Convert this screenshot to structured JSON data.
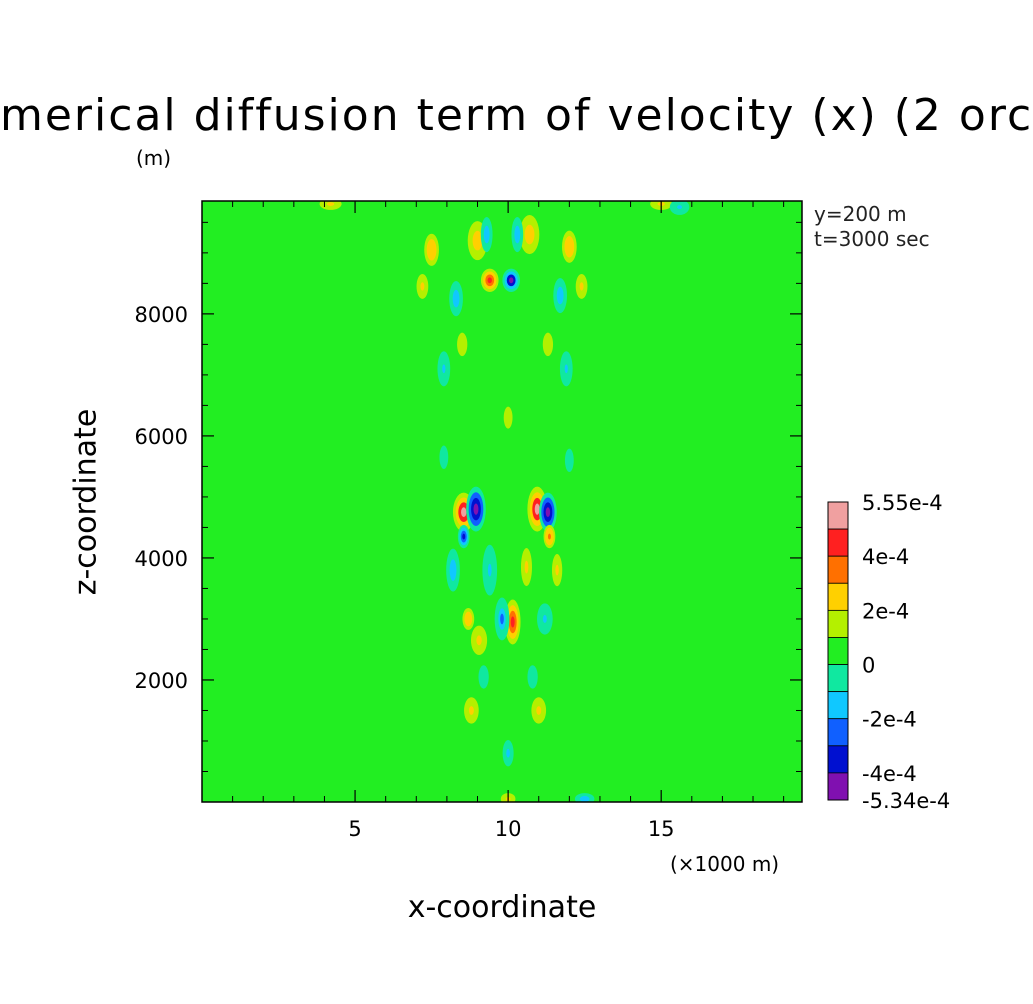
{
  "chart_data": {
    "type": "heatmap",
    "title": "merical diffusion term of velocity (x) (2 orc",
    "xlabel": "x-coordinate",
    "ylabel": "z-coordinate",
    "x_units": "(×1000 m)",
    "y_units": "(m)",
    "annotations": [
      "y=200 m",
      "t=3000 sec"
    ],
    "xlim": [
      0,
      19.6
    ],
    "ylim": [
      0,
      9850
    ],
    "xticks": [
      {
        "value": 5,
        "label": "5"
      },
      {
        "value": 10,
        "label": "10"
      },
      {
        "value": 15,
        "label": "15"
      }
    ],
    "yticks": [
      {
        "value": 2000,
        "label": "2000"
      },
      {
        "value": 4000,
        "label": "4000"
      },
      {
        "value": 6000,
        "label": "6000"
      },
      {
        "value": 8000,
        "label": "8000"
      }
    ],
    "background_color": "#22ee22",
    "features": [
      {
        "x": 9.4,
        "z": 8550,
        "value": 0.00042,
        "rx": 0.18,
        "rz": 120
      },
      {
        "x": 10.1,
        "z": 8550,
        "value": -0.00045,
        "rx": 0.18,
        "rz": 120
      },
      {
        "x": 8.55,
        "z": 4750,
        "value": 0.0005,
        "rx": 0.22,
        "rz": 200
      },
      {
        "x": 8.95,
        "z": 4800,
        "value": -0.0005,
        "rx": 0.2,
        "rz": 230
      },
      {
        "x": 10.95,
        "z": 4800,
        "value": 0.00048,
        "rx": 0.2,
        "rz": 230
      },
      {
        "x": 11.3,
        "z": 4750,
        "value": -0.0005,
        "rx": 0.18,
        "rz": 200
      },
      {
        "x": 8.55,
        "z": 4350,
        "value": -0.00035,
        "rx": 0.12,
        "rz": 120
      },
      {
        "x": 11.35,
        "z": 4350,
        "value": 0.00032,
        "rx": 0.12,
        "rz": 120
      },
      {
        "x": 10.15,
        "z": 2950,
        "value": 0.00036,
        "rx": 0.16,
        "rz": 230
      },
      {
        "x": 9.8,
        "z": 3000,
        "value": -0.00025,
        "rx": 0.15,
        "rz": 220
      },
      {
        "x": 9.05,
        "z": 2650,
        "value": 0.0002,
        "rx": 0.22,
        "rz": 200
      },
      {
        "x": 8.7,
        "z": 3000,
        "value": 0.00022,
        "rx": 0.16,
        "rz": 150
      },
      {
        "x": 11.2,
        "z": 3000,
        "value": -0.00018,
        "rx": 0.16,
        "rz": 160
      },
      {
        "x": 8.2,
        "z": 3800,
        "value": -0.0002,
        "rx": 0.14,
        "rz": 220
      },
      {
        "x": 11.6,
        "z": 3800,
        "value": 0.00018,
        "rx": 0.14,
        "rz": 220
      },
      {
        "x": 9.4,
        "z": 3800,
        "value": -0.00017,
        "rx": 0.15,
        "rz": 260
      },
      {
        "x": 10.6,
        "z": 3850,
        "value": 0.00017,
        "rx": 0.15,
        "rz": 260
      },
      {
        "x": 9.0,
        "z": 9200,
        "value": 0.00025,
        "rx": 0.2,
        "rz": 200
      },
      {
        "x": 10.7,
        "z": 9300,
        "value": 0.00025,
        "rx": 0.2,
        "rz": 200
      },
      {
        "x": 9.3,
        "z": 9300,
        "value": -0.0002,
        "rx": 0.12,
        "rz": 180
      },
      {
        "x": 10.3,
        "z": 9300,
        "value": -0.0002,
        "rx": 0.12,
        "rz": 180
      },
      {
        "x": 7.5,
        "z": 9050,
        "value": 0.00022,
        "rx": 0.2,
        "rz": 220
      },
      {
        "x": 12.0,
        "z": 9100,
        "value": 0.00022,
        "rx": 0.2,
        "rz": 220
      },
      {
        "x": 8.3,
        "z": 8250,
        "value": -0.00022,
        "rx": 0.14,
        "rz": 180
      },
      {
        "x": 11.7,
        "z": 8300,
        "value": -0.00022,
        "rx": 0.14,
        "rz": 180
      },
      {
        "x": 7.2,
        "z": 8450,
        "value": 0.0002,
        "rx": 0.16,
        "rz": 170
      },
      {
        "x": 12.4,
        "z": 8450,
        "value": 0.0002,
        "rx": 0.16,
        "rz": 170
      },
      {
        "x": 7.9,
        "z": 7100,
        "value": -0.00018,
        "rx": 0.13,
        "rz": 180
      },
      {
        "x": 11.9,
        "z": 7100,
        "value": -0.00018,
        "rx": 0.13,
        "rz": 180
      },
      {
        "x": 8.5,
        "z": 7500,
        "value": 0.00015,
        "rx": 0.14,
        "rz": 160
      },
      {
        "x": 11.3,
        "z": 7500,
        "value": 0.00015,
        "rx": 0.14,
        "rz": 160
      },
      {
        "x": 10.0,
        "z": 6300,
        "value": 0.00015,
        "rx": 0.12,
        "rz": 150
      },
      {
        "x": 7.9,
        "z": 5650,
        "value": -0.00012,
        "rx": 0.12,
        "rz": 160
      },
      {
        "x": 12.0,
        "z": 5600,
        "value": -0.00012,
        "rx": 0.12,
        "rz": 160
      },
      {
        "x": 8.8,
        "z": 1500,
        "value": 0.00016,
        "rx": 0.2,
        "rz": 180
      },
      {
        "x": 11.0,
        "z": 1500,
        "value": 0.00016,
        "rx": 0.2,
        "rz": 180
      },
      {
        "x": 10.0,
        "z": 800,
        "value": -0.00014,
        "rx": 0.15,
        "rz": 180
      },
      {
        "x": 9.2,
        "z": 2050,
        "value": -0.00012,
        "rx": 0.14,
        "rz": 160
      },
      {
        "x": 10.8,
        "z": 2050,
        "value": -0.00012,
        "rx": 0.14,
        "rz": 160
      },
      {
        "x": 4.2,
        "z": 9800,
        "value": 0.0002,
        "rx": 0.3,
        "rz": 80
      },
      {
        "x": 15.0,
        "z": 9800,
        "value": 0.0002,
        "rx": 0.3,
        "rz": 80
      },
      {
        "x": 15.6,
        "z": 9750,
        "value": -0.00018,
        "rx": 0.2,
        "rz": 80
      },
      {
        "x": 10.0,
        "z": 50,
        "value": 0.0002,
        "rx": 0.2,
        "rz": 80
      },
      {
        "x": 12.5,
        "z": 50,
        "value": -0.0002,
        "rx": 0.2,
        "rz": 60
      }
    ],
    "colorbar": {
      "min": -0.000534,
      "max": 0.000555,
      "labels": [
        "5.55e-4",
        "4e-4",
        "2e-4",
        "0",
        "-2e-4",
        "-4e-4",
        "-5.34e-4"
      ],
      "colors": [
        "#f0a0a0",
        "#ff2020",
        "#ff7000",
        "#ffd000",
        "#b4f000",
        "#22ee22",
        "#10e8a0",
        "#10c8ff",
        "#1060ff",
        "#0010d0",
        "#8010b0"
      ]
    }
  }
}
